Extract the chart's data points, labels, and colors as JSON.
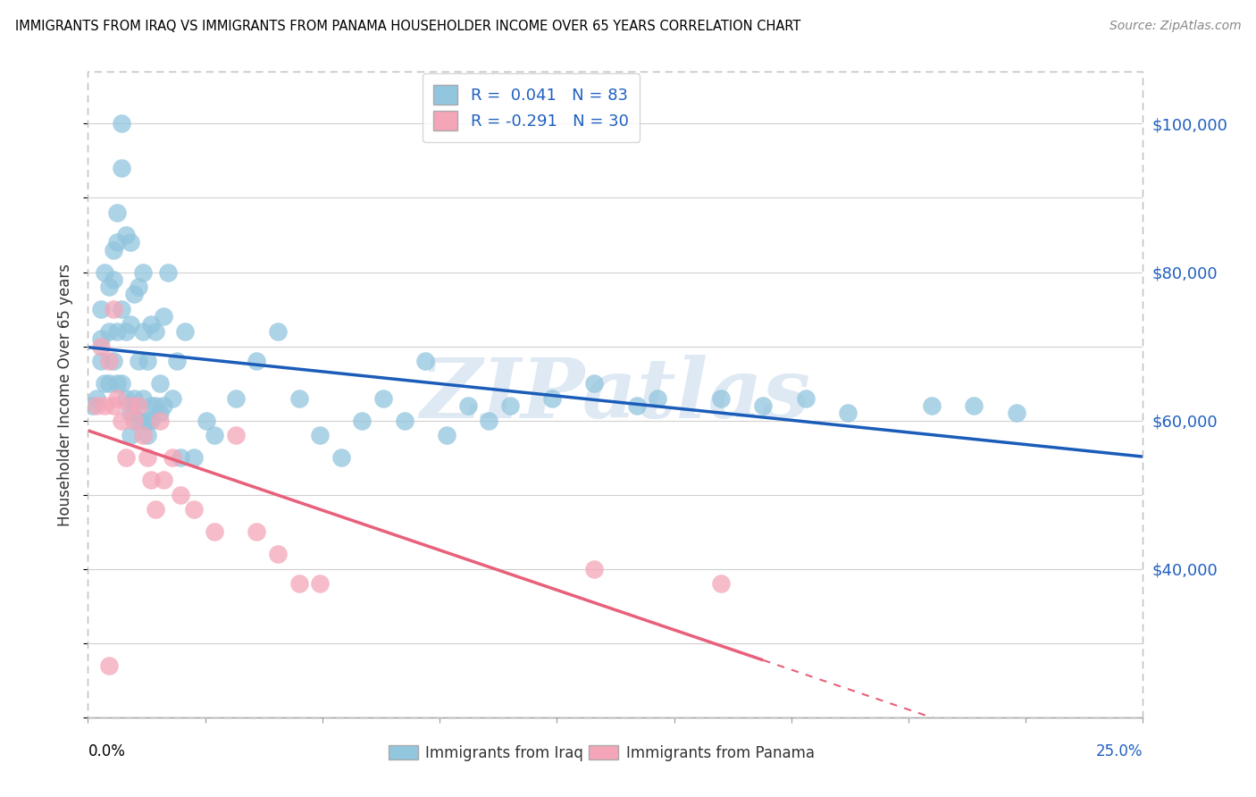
{
  "title": "IMMIGRANTS FROM IRAQ VS IMMIGRANTS FROM PANAMA HOUSEHOLDER INCOME OVER 65 YEARS CORRELATION CHART",
  "source": "Source: ZipAtlas.com",
  "ylabel": "Householder Income Over 65 years",
  "xmin": 0.0,
  "xmax": 0.25,
  "ymin": 20000,
  "ymax": 107000,
  "yticks": [
    40000,
    60000,
    80000,
    100000
  ],
  "ytick_labels": [
    "$40,000",
    "$60,000",
    "$80,000",
    "$100,000"
  ],
  "iraq_color": "#92c5de",
  "panama_color": "#f4a6b8",
  "iraq_line_color": "#1a5cb8",
  "panama_line_color": "#e8607a",
  "watermark_text": "ZIPatlas",
  "legend_iraq_label": "R =  0.041   N = 83",
  "legend_panama_label": "R = -0.291   N = 30",
  "bottom_legend_iraq": "Immigrants from Iraq",
  "bottom_legend_panama": "Immigrants from Panama",
  "iraq_scatter_x": [
    0.001,
    0.002,
    0.003,
    0.003,
    0.003,
    0.004,
    0.004,
    0.005,
    0.005,
    0.005,
    0.006,
    0.006,
    0.006,
    0.007,
    0.007,
    0.007,
    0.007,
    0.008,
    0.008,
    0.008,
    0.008,
    0.009,
    0.009,
    0.009,
    0.01,
    0.01,
    0.01,
    0.011,
    0.011,
    0.012,
    0.012,
    0.013,
    0.013,
    0.013,
    0.014,
    0.014,
    0.015,
    0.015,
    0.016,
    0.017,
    0.018,
    0.019,
    0.02,
    0.021,
    0.022,
    0.023,
    0.025,
    0.028,
    0.03,
    0.035,
    0.04,
    0.045,
    0.05,
    0.055,
    0.06,
    0.065,
    0.07,
    0.075,
    0.08,
    0.085,
    0.09,
    0.095,
    0.1,
    0.11,
    0.12,
    0.13,
    0.135,
    0.15,
    0.16,
    0.17,
    0.18,
    0.2,
    0.21,
    0.22,
    0.01,
    0.011,
    0.012,
    0.013,
    0.014,
    0.015,
    0.016,
    0.017,
    0.018
  ],
  "iraq_scatter_y": [
    62000,
    63000,
    71000,
    75000,
    68000,
    80000,
    65000,
    78000,
    72000,
    65000,
    83000,
    79000,
    68000,
    84000,
    88000,
    72000,
    65000,
    94000,
    100000,
    75000,
    65000,
    85000,
    72000,
    63000,
    84000,
    73000,
    61000,
    77000,
    63000,
    78000,
    68000,
    80000,
    72000,
    63000,
    68000,
    60000,
    73000,
    60000,
    72000,
    65000,
    74000,
    80000,
    63000,
    68000,
    55000,
    72000,
    55000,
    60000,
    58000,
    63000,
    68000,
    72000,
    63000,
    58000,
    55000,
    60000,
    63000,
    60000,
    68000,
    58000,
    62000,
    60000,
    62000,
    63000,
    65000,
    62000,
    63000,
    63000,
    62000,
    63000,
    61000,
    62000,
    62000,
    61000,
    58000,
    62000,
    60000,
    60000,
    58000,
    62000,
    62000,
    61000,
    62000
  ],
  "panama_scatter_x": [
    0.002,
    0.003,
    0.004,
    0.005,
    0.006,
    0.006,
    0.007,
    0.008,
    0.009,
    0.01,
    0.011,
    0.012,
    0.013,
    0.014,
    0.015,
    0.016,
    0.017,
    0.018,
    0.02,
    0.022,
    0.025,
    0.03,
    0.035,
    0.04,
    0.045,
    0.05,
    0.055,
    0.12,
    0.15,
    0.005
  ],
  "panama_scatter_y": [
    62000,
    70000,
    62000,
    68000,
    75000,
    62000,
    63000,
    60000,
    55000,
    62000,
    60000,
    62000,
    58000,
    55000,
    52000,
    48000,
    60000,
    52000,
    55000,
    50000,
    48000,
    45000,
    58000,
    45000,
    42000,
    38000,
    38000,
    40000,
    38000,
    27000
  ]
}
